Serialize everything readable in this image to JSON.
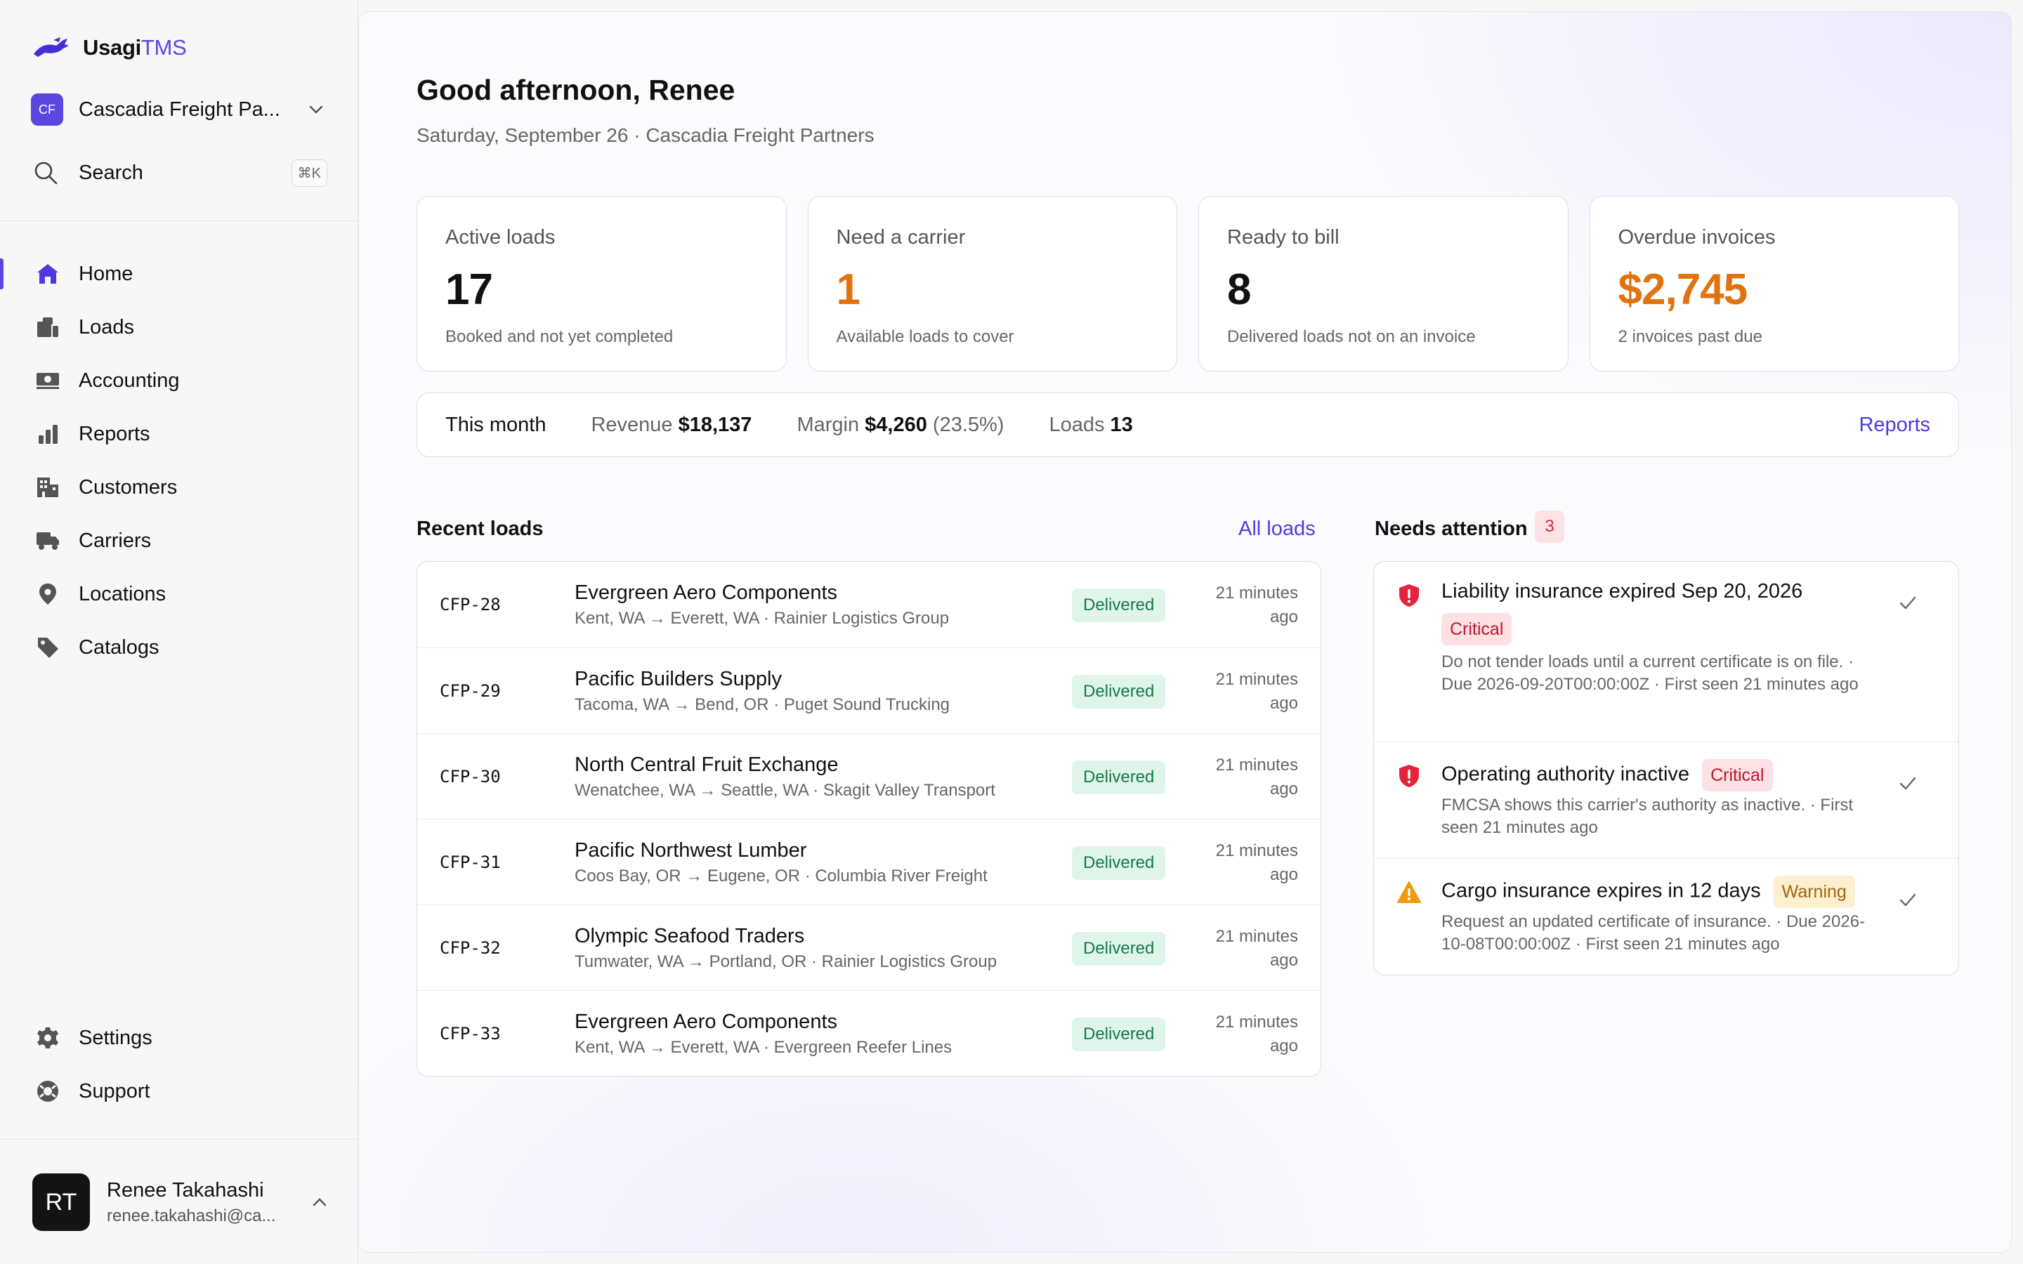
{
  "brand": {
    "name_bold": "Usagi",
    "name_light": "TMS"
  },
  "org": {
    "initials": "CF",
    "name": "Cascadia Freight Pa..."
  },
  "search": {
    "label": "Search",
    "shortcut": "⌘K"
  },
  "nav": {
    "items": [
      {
        "label": "Home",
        "icon": "home-icon",
        "active": true
      },
      {
        "label": "Loads",
        "icon": "loads-icon"
      },
      {
        "label": "Accounting",
        "icon": "accounting-icon"
      },
      {
        "label": "Reports",
        "icon": "reports-icon"
      },
      {
        "label": "Customers",
        "icon": "customers-icon"
      },
      {
        "label": "Carriers",
        "icon": "carriers-icon"
      },
      {
        "label": "Locations",
        "icon": "location-icon"
      },
      {
        "label": "Catalogs",
        "icon": "tag-icon"
      }
    ],
    "bottom": [
      {
        "label": "Settings",
        "icon": "gear-icon"
      },
      {
        "label": "Support",
        "icon": "lifebuoy-icon"
      }
    ]
  },
  "user": {
    "initials": "RT",
    "name": "Renee Takahashi",
    "email": "renee.takahashi@ca..."
  },
  "header": {
    "greeting": "Good afternoon, Renee",
    "subtitle": "Saturday, September 26 · Cascadia Freight Partners"
  },
  "stats": [
    {
      "label": "Active loads",
      "value": "17",
      "sub": "Booked and not yet completed",
      "accent": false
    },
    {
      "label": "Need a carrier",
      "value": "1",
      "sub": "Available loads to cover",
      "accent": true
    },
    {
      "label": "Ready to bill",
      "value": "8",
      "sub": "Delivered loads not on an invoice",
      "accent": false
    },
    {
      "label": "Overdue invoices",
      "value": "$2,745",
      "sub": "2 invoices past due",
      "accent": true
    }
  ],
  "month": {
    "title": "This month",
    "revenue_label": "Revenue",
    "revenue_value": "$18,137",
    "margin_label": "Margin",
    "margin_value": "$4,260",
    "margin_pct": "(23.5%)",
    "loads_label": "Loads",
    "loads_value": "13",
    "link": "Reports"
  },
  "recent": {
    "title": "Recent loads",
    "link": "All loads",
    "rows": [
      {
        "id": "CFP-28",
        "customer": "Evergreen Aero Components",
        "route": "Kent, WA → Everett, WA · Rainier Logistics Group",
        "status": "Delivered",
        "time1": "21 minutes",
        "time2": "ago"
      },
      {
        "id": "CFP-29",
        "customer": "Pacific Builders Supply",
        "route": "Tacoma, WA → Bend, OR · Puget Sound Trucking",
        "status": "Delivered",
        "time1": "21 minutes",
        "time2": "ago"
      },
      {
        "id": "CFP-30",
        "customer": "North Central Fruit Exchange",
        "route": "Wenatchee, WA → Seattle, WA · Skagit Valley Transport",
        "status": "Delivered",
        "time1": "21 minutes",
        "time2": "ago"
      },
      {
        "id": "CFP-31",
        "customer": "Pacific Northwest Lumber",
        "route": "Coos Bay, OR → Eugene, OR · Columbia River Freight",
        "status": "Delivered",
        "time1": "21 minutes",
        "time2": "ago"
      },
      {
        "id": "CFP-32",
        "customer": "Olympic Seafood Traders",
        "route": "Tumwater, WA → Portland, OR · Rainier Logistics Group",
        "status": "Delivered",
        "time1": "21 minutes",
        "time2": "ago"
      },
      {
        "id": "CFP-33",
        "customer": "Evergreen Aero Components",
        "route": "Kent, WA → Everett, WA · Evergreen Reefer Lines",
        "status": "Delivered",
        "time1": "21 minutes",
        "time2": "ago"
      }
    ]
  },
  "attention": {
    "title": "Needs attention",
    "count": "3",
    "items": [
      {
        "title": "Liability insurance expired Sep 20, 2026",
        "severity": "Critical",
        "desc": "Do not tender loads until a current certificate is on file. · Due 2026-09-20T00:00:00Z · First seen 21 minutes ago",
        "icon": "shield-alert-icon"
      },
      {
        "title": "Operating authority inactive",
        "severity": "Critical",
        "desc": "FMCSA shows this carrier's authority as inactive. · First seen 21 minutes ago",
        "icon": "shield-alert-icon"
      },
      {
        "title": "Cargo insurance expires in 12 days",
        "severity": "Warning",
        "desc": "Request an updated certificate of insurance. · Due 2026-10-08T00:00:00Z · First seen 21 minutes ago",
        "icon": "warning-triangle-icon"
      }
    ]
  },
  "colors": {
    "accent": "#5b47e0",
    "orange": "#e0730f",
    "critical": "#e5233b",
    "warning": "#f29a0e"
  }
}
